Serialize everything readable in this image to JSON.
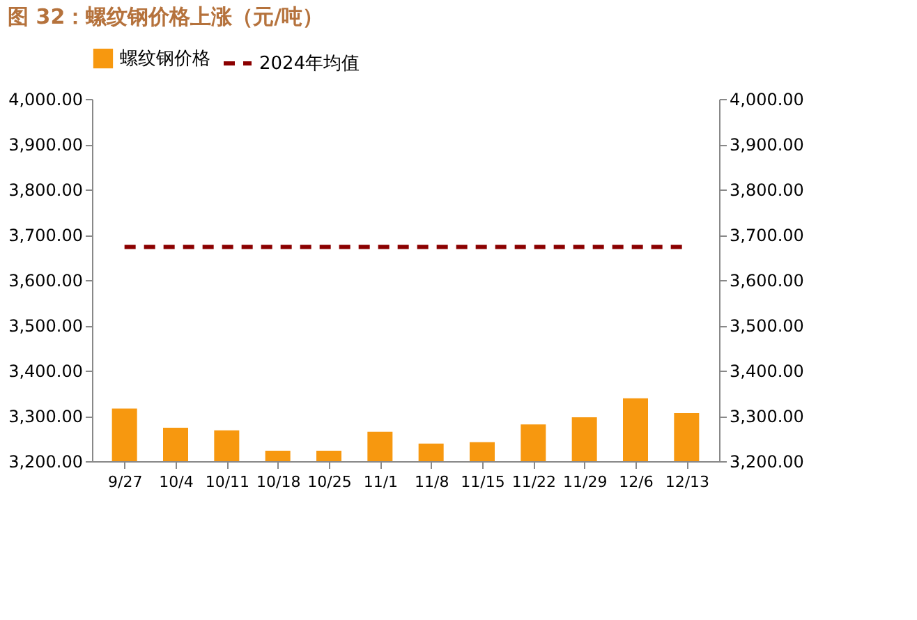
{
  "chart_data": {
    "type": "bar",
    "title": "图 32：螺纹钢价格上涨（元/吨）",
    "categories": [
      "9/27",
      "10/4",
      "10/11",
      "10/18",
      "10/25",
      "11/1",
      "11/8",
      "11/15",
      "11/22",
      "11/29",
      "12/6",
      "12/13"
    ],
    "series": [
      {
        "name": "螺纹钢价格",
        "color": "#f7980f",
        "values": [
          3316,
          3274,
          3268,
          3223,
          3223,
          3265,
          3239,
          3242,
          3281,
          3297,
          3339,
          3306
        ]
      }
    ],
    "ref_lines": [
      {
        "axis": "y",
        "value": 3673,
        "label": "2024年均值",
        "color": "#8b0000",
        "line_style": "dashed"
      }
    ],
    "ylim": [
      3200,
      4000
    ],
    "yticks": [
      {
        "value": 3200,
        "label": "3,200.00"
      },
      {
        "value": 3300,
        "label": "3,300.00"
      },
      {
        "value": 3400,
        "label": "3,400.00"
      },
      {
        "value": 3500,
        "label": "3,500.00"
      },
      {
        "value": 3600,
        "label": "3,600.00"
      },
      {
        "value": 3700,
        "label": "3,700.00"
      },
      {
        "value": 3800,
        "label": "3,800.00"
      },
      {
        "value": 3900,
        "label": "3,900.00"
      },
      {
        "value": 4000,
        "label": "4,000.00"
      }
    ],
    "y2lim": [
      3200,
      4000
    ],
    "y2ticks": [
      {
        "value": 3200,
        "label": "3,200.00"
      },
      {
        "value": 3300,
        "label": "3,300.00"
      },
      {
        "value": 3400,
        "label": "3,400.00"
      },
      {
        "value": 3500,
        "label": "3,500.00"
      },
      {
        "value": 3600,
        "label": "3,600.00"
      },
      {
        "value": 3700,
        "label": "3,700.00"
      },
      {
        "value": 3800,
        "label": "3,800.00"
      },
      {
        "value": 3900,
        "label": "3,900.00"
      },
      {
        "value": 4000,
        "label": "4,000.00"
      }
    ],
    "legend": "top",
    "grid": false
  }
}
